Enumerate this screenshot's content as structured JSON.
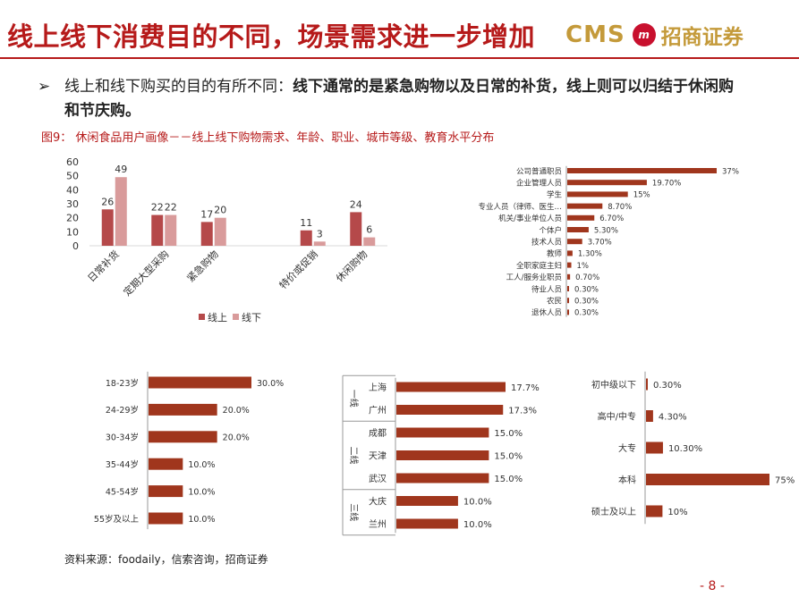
{
  "header": {
    "title": "线上线下消费目的不同，场景需求进一步增加",
    "brand_cms": "CMS",
    "brand_logo_text": "m",
    "brand_name": "招商证券"
  },
  "bullet": {
    "icon": "arrow-bullet-icon",
    "text_plain": "线上和线下购买的目的有所不同：",
    "text_bold": "线下通常的是紧急购物以及日常的补货，线上则可以归结于休闲购和节庆购。"
  },
  "figure_caption": "图9： 休闲食品用户画像－－线上线下购物需求、年龄、职业、城市等级、教育水平分布",
  "source": "资料来源：foodaily，信索咨询，招商证券",
  "page_number": "- 8 -",
  "colors": {
    "accent": "#b61a1a",
    "online": "#b5494a",
    "offline": "#d99b9b",
    "bar_dark": "#a0361d",
    "gold": "#c49a3a"
  },
  "chart_data": [
    {
      "type": "bar",
      "id": "purpose",
      "categories": [
        "日常补货",
        "定期大型采购",
        "紧急购物",
        "",
        "特价或促销",
        "休闲购物"
      ],
      "series": [
        {
          "name": "线上",
          "values": [
            26,
            22,
            17,
            null,
            11,
            24
          ]
        },
        {
          "name": "线下",
          "values": [
            49,
            22,
            20,
            null,
            3,
            6
          ]
        }
      ],
      "ylim": [
        0,
        60
      ],
      "yticks": [
        0,
        10,
        20,
        30,
        40,
        50,
        60
      ],
      "legend": "bottom",
      "grid": false
    },
    {
      "type": "bar",
      "id": "occupation",
      "orientation": "horizontal",
      "categories": [
        "公司普通职员",
        "企业管理人员",
        "学生",
        "专业人员（律师、医生…",
        "机关/事业单位人员",
        "个体户",
        "技术人员",
        "教师",
        "全职家庭主妇",
        "工人/服务业职员",
        "待业人员",
        "农民",
        "退休人员"
      ],
      "values": [
        37,
        19.7,
        15,
        8.7,
        6.7,
        5.3,
        3.7,
        1.3,
        1,
        0.7,
        0.3,
        0.3,
        0.3
      ],
      "labels": [
        "37%",
        "19.70%",
        "15%",
        "8.70%",
        "6.70%",
        "5.30%",
        "3.70%",
        "1.30%",
        "1%",
        "0.70%",
        "0.30%",
        "0.30%",
        "0.30%"
      ]
    },
    {
      "type": "bar",
      "id": "age",
      "orientation": "horizontal",
      "categories": [
        "18-23岁",
        "24-29岁",
        "30-34岁",
        "35-44岁",
        "45-54岁",
        "55岁及以上"
      ],
      "values": [
        30,
        20,
        20,
        10,
        10,
        10
      ],
      "labels": [
        "30.0%",
        "20.0%",
        "20.0%",
        "10.0%",
        "10.0%",
        "10.0%"
      ]
    },
    {
      "type": "bar",
      "id": "city",
      "orientation": "horizontal",
      "categories": [
        "上海",
        "广州",
        "成都",
        "天津",
        "武汉",
        "大庆",
        "兰州"
      ],
      "groups": [
        {
          "name": "一线",
          "members": [
            "上海",
            "广州"
          ]
        },
        {
          "name": "二线",
          "members": [
            "成都",
            "天津",
            "武汉"
          ]
        },
        {
          "name": "三线",
          "members": [
            "大庆",
            "兰州"
          ]
        }
      ],
      "values": [
        17.7,
        17.3,
        15,
        15,
        15,
        10,
        10
      ],
      "labels": [
        "17.7%",
        "17.3%",
        "15.0%",
        "15.0%",
        "15.0%",
        "10.0%",
        "10.0%"
      ]
    },
    {
      "type": "bar",
      "id": "education",
      "orientation": "horizontal",
      "categories": [
        "初中级以下",
        "高中/中专",
        "大专",
        "本科",
        "硕士及以上"
      ],
      "values": [
        0.3,
        4.3,
        10.3,
        75,
        10
      ],
      "labels": [
        "0.30%",
        "4.30%",
        "10.30%",
        "75%",
        "10%"
      ]
    }
  ]
}
